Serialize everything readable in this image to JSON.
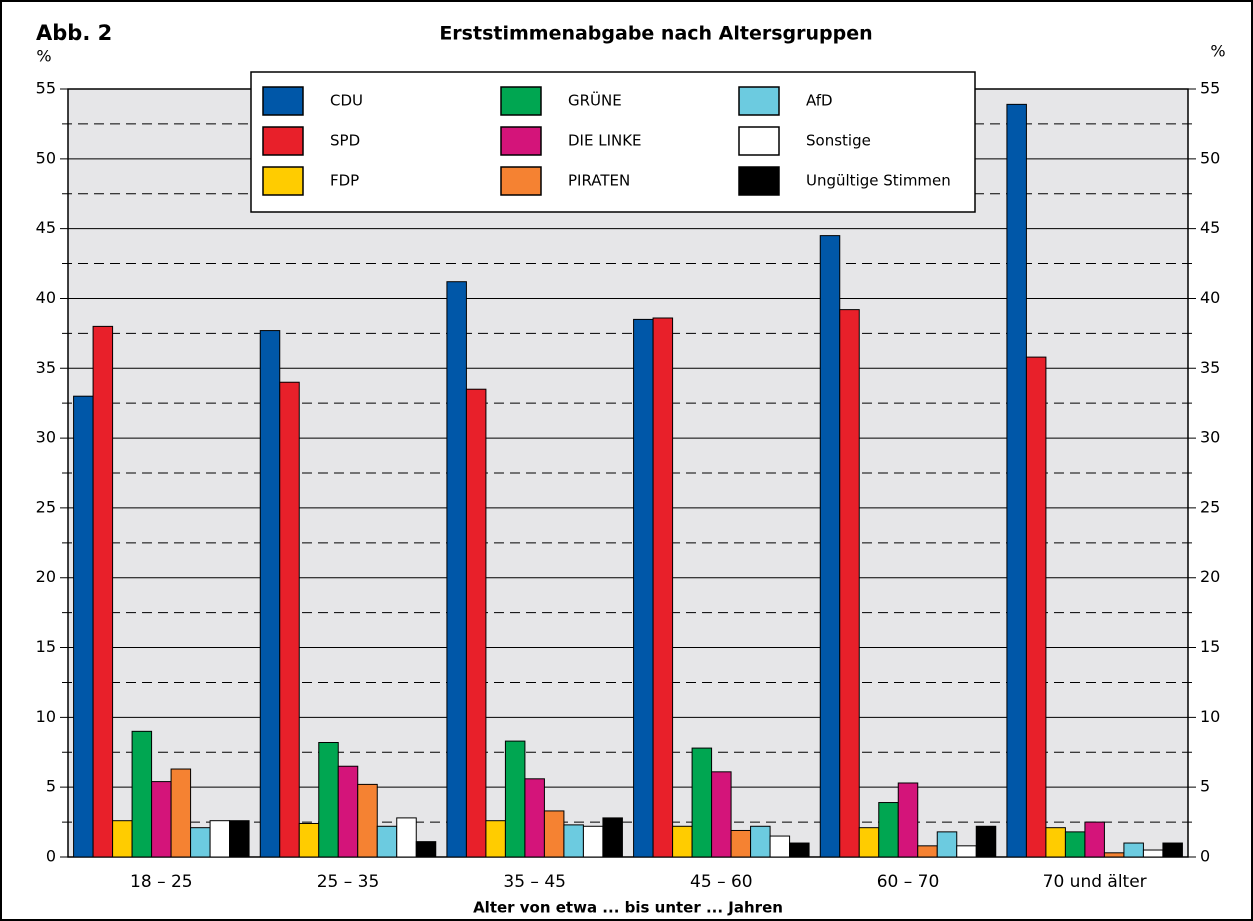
{
  "chart_data": {
    "type": "bar",
    "label": "Abb. 2",
    "title": "Erststimmenabgabe nach Altersgruppen",
    "y_unit": "%",
    "xlabel": "Alter von etwa ... bis unter ... Jahren",
    "categories": [
      "18 – 25",
      "25 – 35",
      "35 – 45",
      "45 – 60",
      "60 – 70",
      "70 und älter"
    ],
    "series": [
      {
        "name": "CDU",
        "color": "#0057a8",
        "values": [
          33,
          37.7,
          41.2,
          38.5,
          44.5,
          53.9
        ]
      },
      {
        "name": "SPD",
        "color": "#e8202a",
        "values": [
          38,
          34,
          33.5,
          38.6,
          39.2,
          35.8
        ]
      },
      {
        "name": "FDP",
        "color": "#ffcc00",
        "values": [
          2.6,
          2.4,
          2.6,
          2.2,
          2.1,
          2.1
        ]
      },
      {
        "name": "GRÜNE",
        "color": "#00a651",
        "values": [
          9,
          8.2,
          8.3,
          7.8,
          3.9,
          1.8
        ]
      },
      {
        "name": "DIE LINKE",
        "color": "#d4147a",
        "values": [
          5.4,
          6.5,
          5.6,
          6.1,
          5.3,
          2.5
        ]
      },
      {
        "name": "PIRATEN",
        "color": "#f58232",
        "values": [
          6.3,
          5.2,
          3.3,
          1.9,
          0.8,
          0.3
        ]
      },
      {
        "name": "AfD",
        "color": "#6ccbe0",
        "values": [
          2.1,
          2.2,
          2.3,
          2.2,
          1.8,
          1.0
        ]
      },
      {
        "name": "Sonstige",
        "color": "#ffffff",
        "values": [
          2.6,
          2.8,
          2.2,
          1.5,
          0.8,
          0.5
        ]
      },
      {
        "name": "Ungültige Stimmen",
        "color": "#000000",
        "values": [
          2.6,
          1.1,
          2.8,
          1.0,
          2.2,
          1.0
        ]
      }
    ],
    "ylim": [
      0,
      55
    ],
    "yticks": [
      0,
      5,
      10,
      15,
      20,
      25,
      30,
      35,
      40,
      45,
      50,
      55
    ],
    "yticks_minor": [
      2.5,
      7.5,
      12.5,
      17.5,
      22.5,
      27.5,
      32.5,
      37.5,
      42.5,
      47.5,
      52.5
    ],
    "grid": true,
    "legend": "top"
  }
}
